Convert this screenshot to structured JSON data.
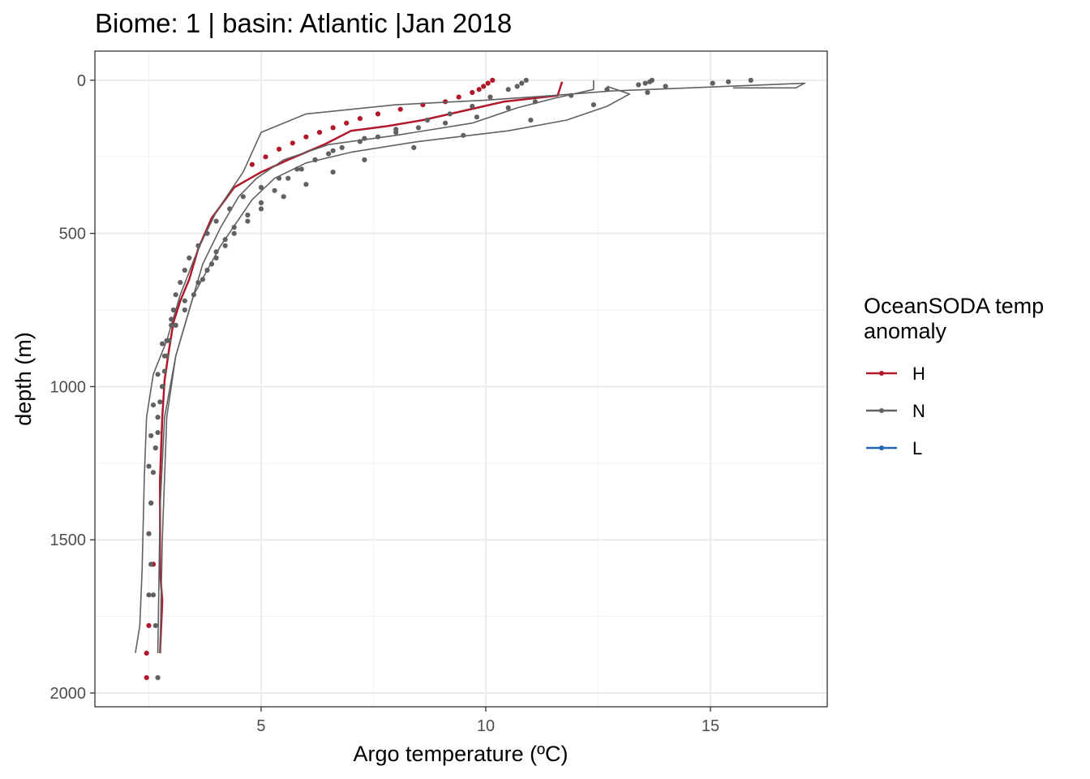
{
  "chart_data": {
    "type": "line",
    "title": "Biome: 1 | basin: Atlantic  |Jan 2018",
    "xlabel": "Argo temperature (ºC)",
    "ylabel": "depth (m)",
    "xlim": [
      1.3,
      17.6
    ],
    "ylim": [
      2045,
      -95
    ],
    "y_reversed": true,
    "x_ticks": [
      5,
      10,
      15
    ],
    "y_ticks": [
      0,
      500,
      1000,
      1500,
      2000
    ],
    "grid": true,
    "legend": {
      "title_lines": [
        "OceanSODA temp",
        "anomaly"
      ],
      "position": "right",
      "entries": [
        {
          "label": "H",
          "color": "#b2182b"
        },
        {
          "label": "N",
          "color": "#616161"
        },
        {
          "label": "L",
          "color": "#2166ac"
        }
      ]
    },
    "series": [
      {
        "group": "H",
        "style": "line",
        "color": "#b2182b",
        "x": [
          11.7,
          11.6,
          11.0,
          10.4,
          9.8,
          8.6,
          7.8,
          7.0,
          6.4,
          5.6,
          5.0,
          4.4,
          3.9,
          3.6,
          3.4,
          3.2,
          3.05,
          2.95,
          2.85,
          2.8,
          2.75,
          2.75,
          2.8,
          2.75
        ],
        "y": [
          5,
          50,
          60,
          70,
          90,
          130,
          150,
          165,
          210,
          260,
          300,
          350,
          450,
          550,
          650,
          720,
          790,
          880,
          980,
          1100,
          1300,
          1600,
          1700,
          1870
        ]
      },
      {
        "group": "H",
        "style": "points",
        "color": "#b2182b",
        "x": [
          10.15,
          10.05,
          9.95,
          9.85,
          9.7,
          9.4,
          9.1,
          8.6,
          8.1,
          7.6,
          7.2,
          6.9,
          6.6,
          6.3,
          6.0,
          5.7,
          5.4,
          5.1,
          4.8,
          2.6,
          2.5,
          2.45,
          2.45
        ],
        "y": [
          0,
          10,
          20,
          30,
          40,
          55,
          70,
          80,
          95,
          110,
          125,
          140,
          155,
          170,
          185,
          205,
          225,
          250,
          275,
          1580,
          1780,
          1870,
          1950
        ]
      },
      {
        "group": "N",
        "style": "line",
        "color": "#616161",
        "x": [
          2.2,
          2.3,
          2.35,
          2.4,
          2.45,
          2.6,
          2.9,
          3.2,
          3.6,
          4.0,
          4.6,
          5.0,
          6.0,
          8.0,
          10.0,
          11.5,
          12.8,
          17.1,
          16.9,
          15.5
        ],
        "y": [
          1870,
          1780,
          1600,
          1300,
          1100,
          960,
          850,
          700,
          550,
          430,
          300,
          170,
          110,
          80,
          65,
          50,
          35,
          10,
          25,
          25
        ]
      },
      {
        "group": "N",
        "style": "line",
        "color": "#616161",
        "x": [
          2.75,
          2.8,
          2.9,
          3.1,
          3.4,
          3.7,
          4.1,
          4.5,
          4.9,
          5.5,
          6.5,
          8.0,
          9.7,
          10.7,
          11.5,
          12.4,
          12.4
        ],
        "y": [
          1870,
          1500,
          1100,
          900,
          750,
          600,
          480,
          380,
          320,
          260,
          210,
          180,
          140,
          90,
          60,
          30,
          0
        ]
      },
      {
        "group": "N",
        "style": "line",
        "color": "#616161",
        "x": [
          2.7,
          2.75,
          2.85,
          3.1,
          3.5,
          4.1,
          4.8,
          5.3,
          6.0,
          7.0,
          8.5,
          10.5,
          11.8,
          12.7,
          13.2,
          12.7
        ],
        "y": [
          1870,
          1400,
          1100,
          900,
          700,
          540,
          390,
          320,
          270,
          235,
          200,
          165,
          130,
          85,
          45,
          20
        ]
      },
      {
        "group": "N",
        "style": "points",
        "color": "#616161",
        "x": [
          13.7,
          13.65,
          13.55,
          13.4,
          12.7,
          11.9,
          11.1,
          10.5,
          9.8,
          9.1,
          8.5,
          8.0,
          7.6,
          7.2,
          6.8,
          6.5,
          6.2,
          5.8,
          5.4,
          5.0,
          4.6,
          4.3,
          4.0,
          3.8,
          3.6,
          3.4,
          3.3,
          3.2,
          3.1,
          3.05,
          3.0,
          2.95,
          2.9,
          2.85,
          2.8,
          2.75,
          2.7,
          2.7,
          2.65
        ],
        "y": [
          0,
          5,
          10,
          15,
          30,
          50,
          70,
          90,
          120,
          140,
          155,
          170,
          185,
          200,
          220,
          240,
          260,
          290,
          320,
          350,
          380,
          420,
          460,
          500,
          540,
          580,
          620,
          660,
          700,
          750,
          800,
          850,
          900,
          950,
          1000,
          1050,
          1100,
          1150,
          1200
        ]
      },
      {
        "group": "N",
        "style": "points",
        "color": "#616161",
        "x": [
          10.9,
          10.8,
          10.7,
          10.5,
          10.1,
          9.7,
          9.2,
          8.7,
          8.0,
          7.3,
          6.6,
          6.2,
          5.9,
          5.6,
          5.3,
          5.0,
          4.7,
          4.4,
          4.2,
          4.0,
          3.9,
          3.7,
          3.5,
          3.3,
          3.1,
          2.9,
          2.85,
          2.8,
          2.7,
          2.65,
          2.6,
          2.55,
          2.5,
          2.5
        ],
        "y": [
          0,
          10,
          20,
          30,
          55,
          85,
          110,
          130,
          160,
          190,
          230,
          260,
          290,
          320,
          360,
          400,
          440,
          480,
          520,
          560,
          600,
          650,
          700,
          750,
          800,
          850,
          900,
          1000,
          1100,
          1200,
          1280,
          1380,
          1480,
          1680
        ]
      },
      {
        "group": "N",
        "style": "points",
        "color": "#616161",
        "x": [
          15.9,
          15.4,
          15.05,
          14.0,
          13.6,
          12.4,
          11.0,
          9.5,
          8.4,
          7.3,
          6.6,
          6.0,
          5.5,
          5.0,
          4.7,
          4.4,
          4.2,
          4.0,
          3.8,
          3.6,
          3.3,
          3.0,
          2.8,
          2.7,
          2.6,
          2.55,
          2.5
        ],
        "y": [
          0,
          5,
          10,
          20,
          40,
          80,
          130,
          180,
          220,
          260,
          300,
          340,
          380,
          420,
          460,
          500,
          540,
          580,
          620,
          660,
          720,
          780,
          860,
          960,
          1060,
          1160,
          1260
        ]
      },
      {
        "group": "N",
        "style": "points",
        "color": "#616161",
        "x": [
          2.55,
          2.5,
          2.55,
          2.6,
          2.65,
          2.7
        ],
        "y": [
          1380,
          1480,
          1580,
          1680,
          1780,
          1950
        ]
      }
    ]
  }
}
